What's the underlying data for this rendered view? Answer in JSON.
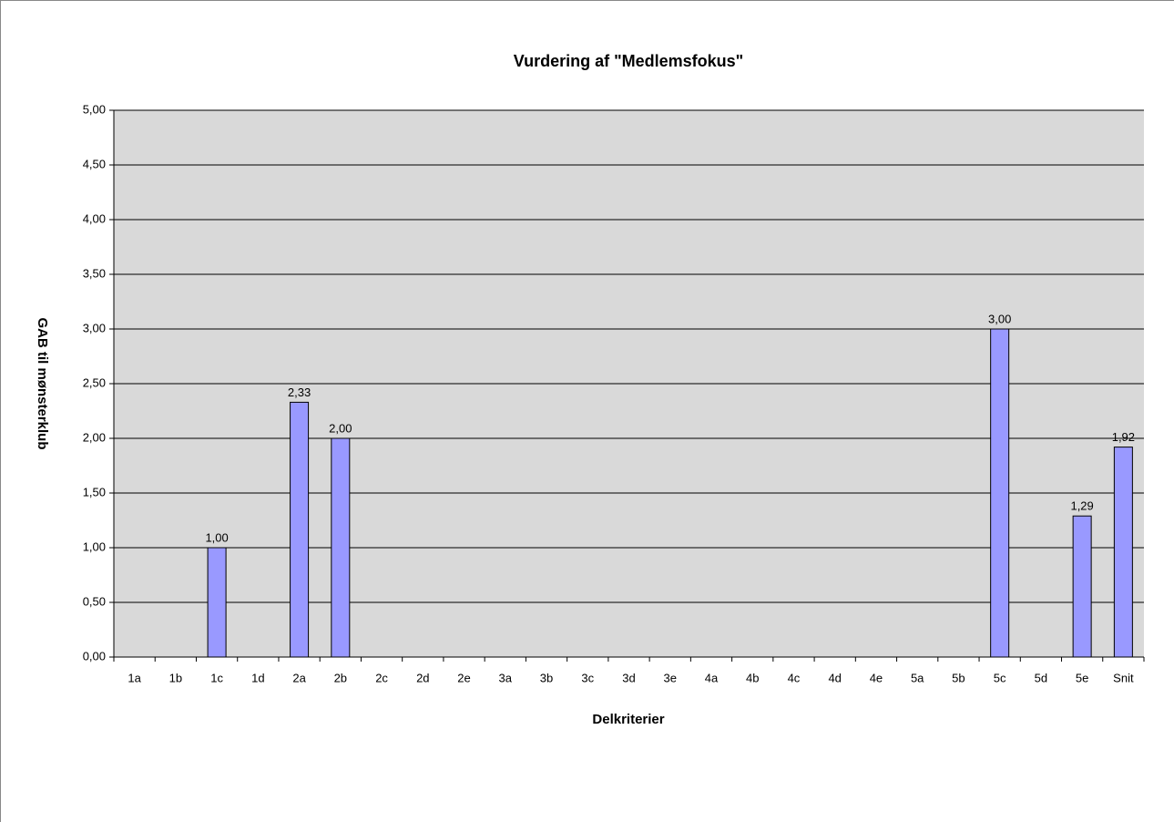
{
  "chart_data": {
    "type": "bar",
    "title": "Vurdering af \"Medlemsfokus\"",
    "x_label": "Delkriterier",
    "y_label": "GAB til mønsterklub",
    "categories": [
      "1a",
      "1b",
      "1c",
      "1d",
      "2a",
      "2b",
      "2c",
      "2d",
      "2e",
      "3a",
      "3b",
      "3c",
      "3d",
      "3e",
      "4a",
      "4b",
      "4c",
      "4d",
      "4e",
      "5a",
      "5b",
      "5c",
      "5d",
      "5e",
      "Snit"
    ],
    "values": [
      null,
      null,
      1.0,
      null,
      2.33,
      2.0,
      null,
      null,
      null,
      null,
      null,
      null,
      null,
      null,
      null,
      null,
      null,
      null,
      null,
      null,
      null,
      3.0,
      null,
      1.29,
      1.92
    ],
    "value_labels": [
      null,
      null,
      "1,00",
      null,
      "2,33",
      "2,00",
      null,
      null,
      null,
      null,
      null,
      null,
      null,
      null,
      null,
      null,
      null,
      null,
      null,
      null,
      null,
      "3,00",
      null,
      "1,29",
      "1,92"
    ],
    "color": "#9999ff",
    "ylim": [
      0,
      5
    ],
    "yticks": [
      {
        "value": 0,
        "label": "0,00"
      },
      {
        "value": 0.5,
        "label": "0,50"
      },
      {
        "value": 1,
        "label": "1,00"
      },
      {
        "value": 1.5,
        "label": "1,50"
      },
      {
        "value": 2,
        "label": "2,00"
      },
      {
        "value": 2.5,
        "label": "2,50"
      },
      {
        "value": 3,
        "label": "3,00"
      },
      {
        "value": 3.5,
        "label": "3,50"
      },
      {
        "value": 4,
        "label": "4,00"
      },
      {
        "value": 4.5,
        "label": "4,50"
      },
      {
        "value": 5,
        "label": "5,00"
      }
    ],
    "grid": true
  }
}
